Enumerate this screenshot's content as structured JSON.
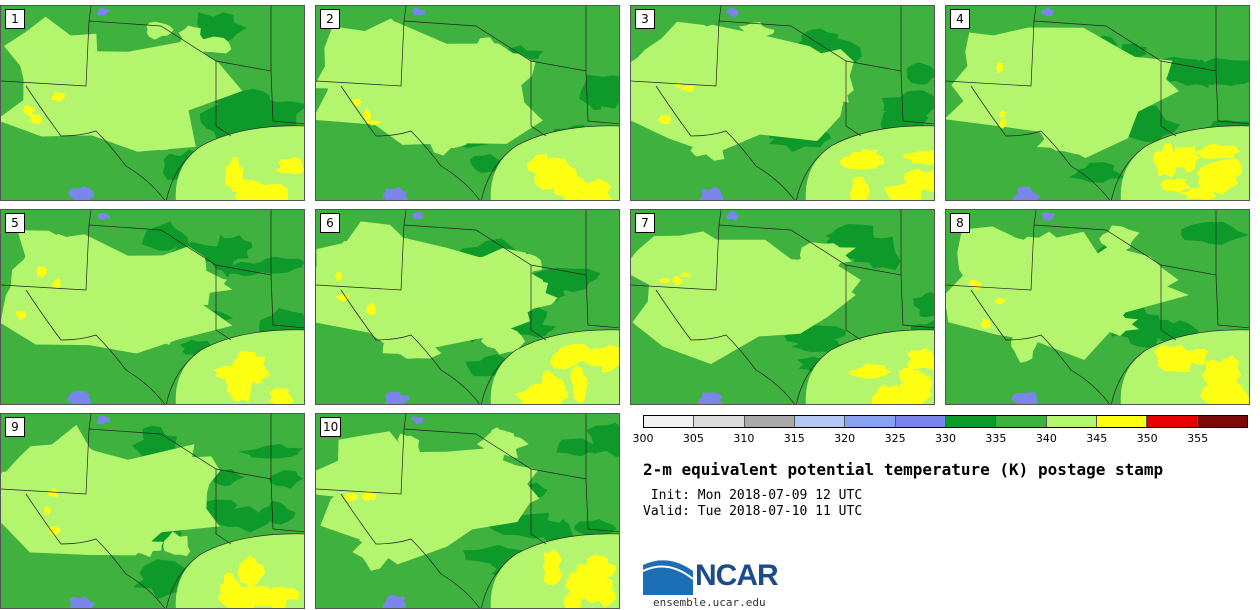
{
  "panels": [
    {
      "label": "1"
    },
    {
      "label": "2"
    },
    {
      "label": "3"
    },
    {
      "label": "4"
    },
    {
      "label": "5"
    },
    {
      "label": "6"
    },
    {
      "label": "7"
    },
    {
      "label": "8"
    },
    {
      "label": "9"
    },
    {
      "label": "10"
    }
  ],
  "colorbar": {
    "colors": [
      "#f2f2f2",
      "#dcdcdc",
      "#a9a9a9",
      "#b3c8f5",
      "#8aa0f0",
      "#7a86ea",
      "#0d9a2a",
      "#3fb13f",
      "#b4f56e",
      "#ffff14",
      "#e60000",
      "#7a0a0a"
    ],
    "ticks": [
      "300",
      "305",
      "310",
      "315",
      "320",
      "325",
      "330",
      "335",
      "340",
      "345",
      "350",
      "355"
    ]
  },
  "title": "2-m equivalent potential temperature (K) postage stamp",
  "init": " Init: Mon 2018-07-09 12 UTC",
  "valid": "Valid: Tue 2018-07-10 11 UTC",
  "logo": {
    "text": "NCAR",
    "url": "ensemble.ucar.edu"
  }
}
